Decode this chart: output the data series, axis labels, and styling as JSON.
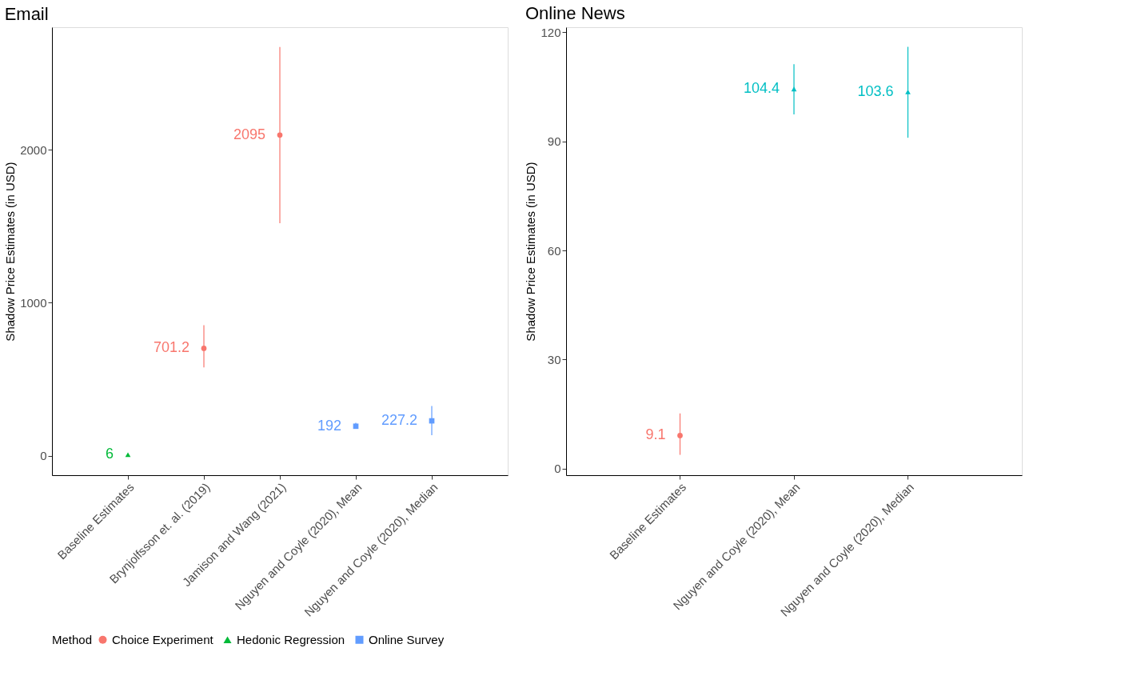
{
  "chart_data": [
    {
      "type": "scatter",
      "title": "Email",
      "ylabel": "Shadow Price Estimates (in USD)",
      "legend_title": "Method",
      "legend": "bottom",
      "grid": false,
      "data_labels": true,
      "categories": [
        "Baseline Estimates",
        "Brynjolfsson et. al. (2019)",
        "Jamison and Wang (2021)",
        "Nguyen and Coyle (2020), Mean",
        "Nguyen and Coyle (2020), Median"
      ],
      "ylim": [
        -128,
        2800
      ],
      "yticks": [
        0,
        1000,
        2000
      ],
      "series": [
        {
          "name": "Choice Experiment",
          "color": "#f8766d",
          "marker": "circle",
          "values": [
            null,
            701.2,
            2095,
            null,
            null
          ],
          "errors": [
            null,
            [
              576,
              852
            ],
            [
              1519,
              2671
            ],
            null,
            null
          ]
        },
        {
          "name": "Hedonic Regression",
          "color": "#00ba38",
          "marker": "triangle",
          "values": [
            6,
            null,
            null,
            null,
            null
          ],
          "errors": [
            null,
            null,
            null,
            null,
            null
          ]
        },
        {
          "name": "Online Survey",
          "color": "#619cff",
          "marker": "square",
          "values": [
            null,
            null,
            null,
            192,
            227.2
          ],
          "errors": [
            null,
            null,
            null,
            [
              181,
              214
            ],
            [
              133,
              324
            ]
          ]
        }
      ]
    },
    {
      "type": "scatter",
      "title": "Online News",
      "ylabel": "Shadow Price Estimates (in USD)",
      "legend": false,
      "grid": false,
      "data_labels": true,
      "categories": [
        "Baseline Estimates",
        "Nguyen and Coyle (2020), Mean",
        "Nguyen and Coyle (2020), Median"
      ],
      "ylim": [
        -1.8,
        121.4
      ],
      "yticks": [
        0,
        30,
        60,
        90,
        120
      ],
      "series": [
        {
          "color": "#f8766d",
          "marker": "circle",
          "values": [
            9.1,
            null,
            null
          ],
          "errors": [
            [
              3.8,
              15.2
            ],
            null,
            null
          ]
        },
        {
          "color": "#00bfc4",
          "marker": "triangle",
          "values": [
            null,
            104.4,
            103.6
          ],
          "errors": [
            null,
            [
              97.4,
              111.2
            ],
            [
              91.0,
              116.0
            ]
          ]
        }
      ]
    }
  ]
}
